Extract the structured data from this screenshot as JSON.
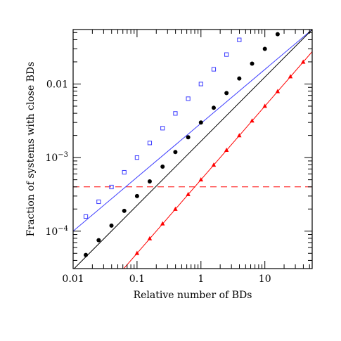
{
  "chart_data": {
    "type": "line",
    "xlabel": "Relative number of BDs",
    "ylabel": "Fraction of systems with close BDs",
    "xscale": "log",
    "yscale": "log",
    "xlim": [
      0.01,
      55
    ],
    "ylim": [
      3.1e-05,
      0.055
    ],
    "grid": false,
    "legend": "none",
    "x_ticks": [
      {
        "value": 0.01,
        "label": "0.01"
      },
      {
        "value": 0.1,
        "label": "0.1"
      },
      {
        "value": 1,
        "label": "1"
      },
      {
        "value": 10,
        "label": "10"
      }
    ],
    "y_ticks": [
      {
        "value": 0.0001,
        "base": "10",
        "exp": "−4"
      },
      {
        "value": 0.001,
        "base": "10",
        "exp": "−3"
      },
      {
        "value": 0.01,
        "base": "0.01",
        "exp": ""
      }
    ],
    "series": [
      {
        "color": "#3b3bff",
        "marker": "open-square",
        "line": [
          [
            0.01,
            0.0001
          ],
          [
            55,
            0.055
          ]
        ],
        "x": [
          0.0158,
          0.0251,
          0.0398,
          0.0631,
          0.1,
          0.158,
          0.251,
          0.398,
          0.631,
          1.0,
          1.585,
          2.512,
          3.981
        ],
        "y": [
          0.000158,
          0.000251,
          0.000398,
          0.000631,
          0.001,
          0.00158,
          0.00251,
          0.00398,
          0.00631,
          0.01,
          0.01585,
          0.02512,
          0.03981
        ]
      },
      {
        "color": "#000000",
        "marker": "filled-circle",
        "line": [
          [
            0.01,
            3e-05
          ],
          [
            55,
            0.055
          ]
        ],
        "x": [
          0.0158,
          0.0251,
          0.0398,
          0.0631,
          0.1,
          0.158,
          0.251,
          0.398,
          0.631,
          1.0,
          1.585,
          2.512,
          3.981,
          6.31,
          10.0,
          15.85
        ],
        "y": [
          4.75e-05,
          7.53e-05,
          0.000119,
          0.000189,
          0.0003,
          0.000475,
          0.000753,
          0.00119,
          0.00189,
          0.003,
          0.00475,
          0.00753,
          0.0119,
          0.0189,
          0.03,
          0.0475
        ]
      },
      {
        "color": "#ff0000",
        "marker": "filled-triangle",
        "line": [
          [
            0.01,
            5e-06
          ],
          [
            55,
            0.0275
          ]
        ],
        "x": [
          0.1,
          0.158,
          0.251,
          0.398,
          0.631,
          1.0,
          1.585,
          2.512,
          3.981,
          6.31,
          10.0,
          15.85,
          25.12,
          39.81
        ],
        "y": [
          5e-05,
          7.92e-05,
          0.000126,
          0.000199,
          0.000316,
          0.0005,
          0.000792,
          0.00126,
          0.00199,
          0.00316,
          0.005,
          0.00792,
          0.0126,
          0.0199
        ]
      }
    ],
    "reference_line": {
      "y": 0.0004,
      "color": "#ff0000",
      "style": "dashed"
    }
  }
}
